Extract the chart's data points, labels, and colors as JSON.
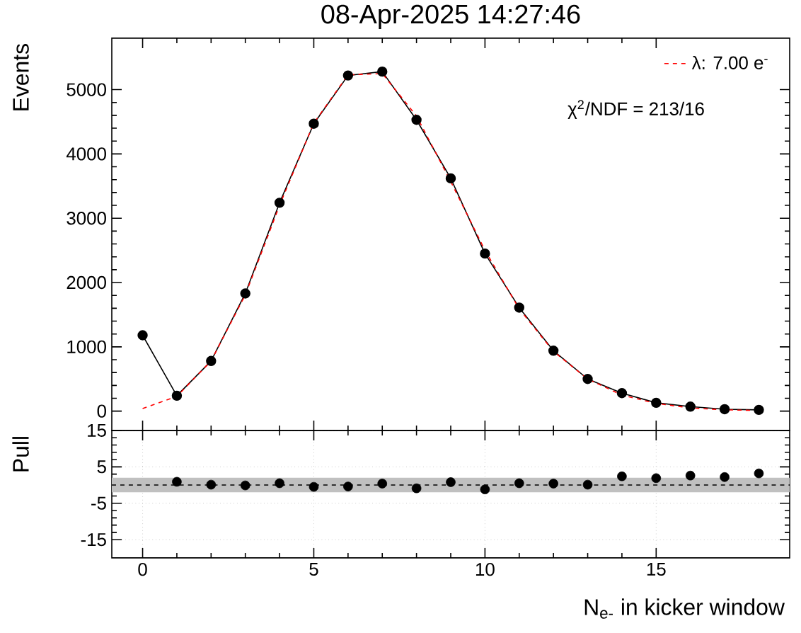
{
  "chart_data": [
    {
      "type": "line",
      "title": "08-Apr-2025 14:27:46",
      "ylabel": "Events",
      "xlim": [
        -0.9,
        18.9
      ],
      "ylim": [
        -300,
        5800
      ],
      "xticks": [
        0,
        5,
        10,
        15
      ],
      "yticks": [
        0,
        1000,
        2000,
        3000,
        4000,
        5000
      ],
      "tick_labels": "y",
      "legend": "top right",
      "grid": false,
      "annotations": [
        "χ$^{2}$/NDF = 213/16"
      ],
      "series": [
        {
          "color": "#000000",
          "marker": "circle",
          "line_style": "solid",
          "x": [
            0,
            1,
            2,
            3,
            4,
            5,
            6,
            7,
            8,
            9,
            10,
            11,
            12,
            13,
            14,
            15,
            16,
            17,
            18
          ],
          "values": [
            1180,
            240,
            780,
            1830,
            3240,
            4470,
            5220,
            5280,
            4530,
            3620,
            2450,
            1610,
            940,
            500,
            280,
            130,
            70,
            30,
            20
          ]
        },
        {
          "name": "λ: 7.00 e$^{-}$",
          "color": "#ff0000",
          "marker": "none",
          "line_style": "dashed",
          "x": [
            0,
            1,
            2,
            3,
            4,
            5,
            6,
            7,
            8,
            9,
            10,
            11,
            12,
            13,
            14,
            15,
            16,
            17,
            18
          ],
          "values": [
            40,
            230,
            780,
            1810,
            3200,
            4480,
            5230,
            5250,
            4590,
            3570,
            2500,
            1590,
            930,
            500,
            250,
            120,
            50,
            20,
            10
          ]
        }
      ]
    },
    {
      "type": "scatter",
      "xlabel": "N$_{e-}$ in kicker window",
      "ylabel": "Pull",
      "xlim": [
        -0.9,
        18.9
      ],
      "ylim": [
        -20,
        15
      ],
      "xticks": [
        0,
        5,
        10,
        15
      ],
      "yticks": [
        15,
        5,
        -5,
        -15
      ],
      "grid": true,
      "ref_lines": [
        {
          "axis": "y",
          "value": 0,
          "line_style": "dashed",
          "color": "#000000"
        }
      ],
      "bands": [
        {
          "axis": "y",
          "from": -2,
          "to": 2,
          "color": "#c0c0c0"
        }
      ],
      "series": [
        {
          "color": "#000000",
          "marker": "circle",
          "x": [
            1,
            2,
            3,
            4,
            5,
            6,
            7,
            8,
            9,
            10,
            11,
            12,
            13,
            14,
            15,
            16,
            17,
            18
          ],
          "values": [
            0.9,
            0.1,
            -0.1,
            0.5,
            -0.5,
            -0.4,
            0.4,
            -0.9,
            0.8,
            -1.2,
            0.5,
            0.4,
            0.1,
            2.4,
            1.9,
            2.6,
            2.2,
            3.2
          ]
        }
      ]
    }
  ]
}
